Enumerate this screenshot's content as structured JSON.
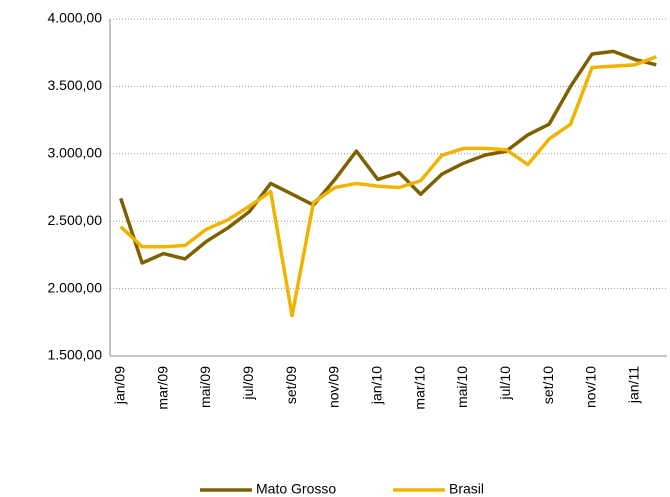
{
  "chart_data": {
    "type": "line",
    "categories": [
      "jan/09",
      null,
      "mar/09",
      null,
      "mai/09",
      null,
      "jul/09",
      null,
      "set/09",
      null,
      "nov/09",
      null,
      "jan/10",
      null,
      "mar/10",
      null,
      "mai/10",
      null,
      "jul/10",
      null,
      "set/10",
      null,
      "nov/10",
      null,
      "jan/11",
      null
    ],
    "series": [
      {
        "name": "Mato Grosso",
        "color": "#7f6000",
        "values": [
          2670,
          2190,
          2260,
          2220,
          2350,
          2450,
          2570,
          2780,
          2700,
          2620,
          2810,
          3020,
          2810,
          2860,
          2700,
          2850,
          2930,
          2990,
          3020,
          3140,
          3220,
          3500,
          3740,
          3760,
          3700,
          3660
        ]
      },
      {
        "name": "Brasil",
        "color": "#f0b400",
        "values": [
          2460,
          2310,
          2310,
          2320,
          2440,
          2510,
          2610,
          2720,
          1800,
          2640,
          2750,
          2780,
          2760,
          2750,
          2800,
          2990,
          3040,
          3040,
          3030,
          2920,
          3110,
          3220,
          3640,
          3650,
          3660,
          3720
        ]
      }
    ],
    "ylim": [
      1500,
      4000
    ],
    "yticks": [
      {
        "value": 1500,
        "label": "1.500,00"
      },
      {
        "value": 2000,
        "label": "2.000,00"
      },
      {
        "value": 2500,
        "label": "2.500,00"
      },
      {
        "value": 3000,
        "label": "3.000,00"
      },
      {
        "value": 3500,
        "label": "3.500,00"
      },
      {
        "value": 4000,
        "label": "4.000,00"
      }
    ],
    "grid": true,
    "legend": "bottom"
  }
}
